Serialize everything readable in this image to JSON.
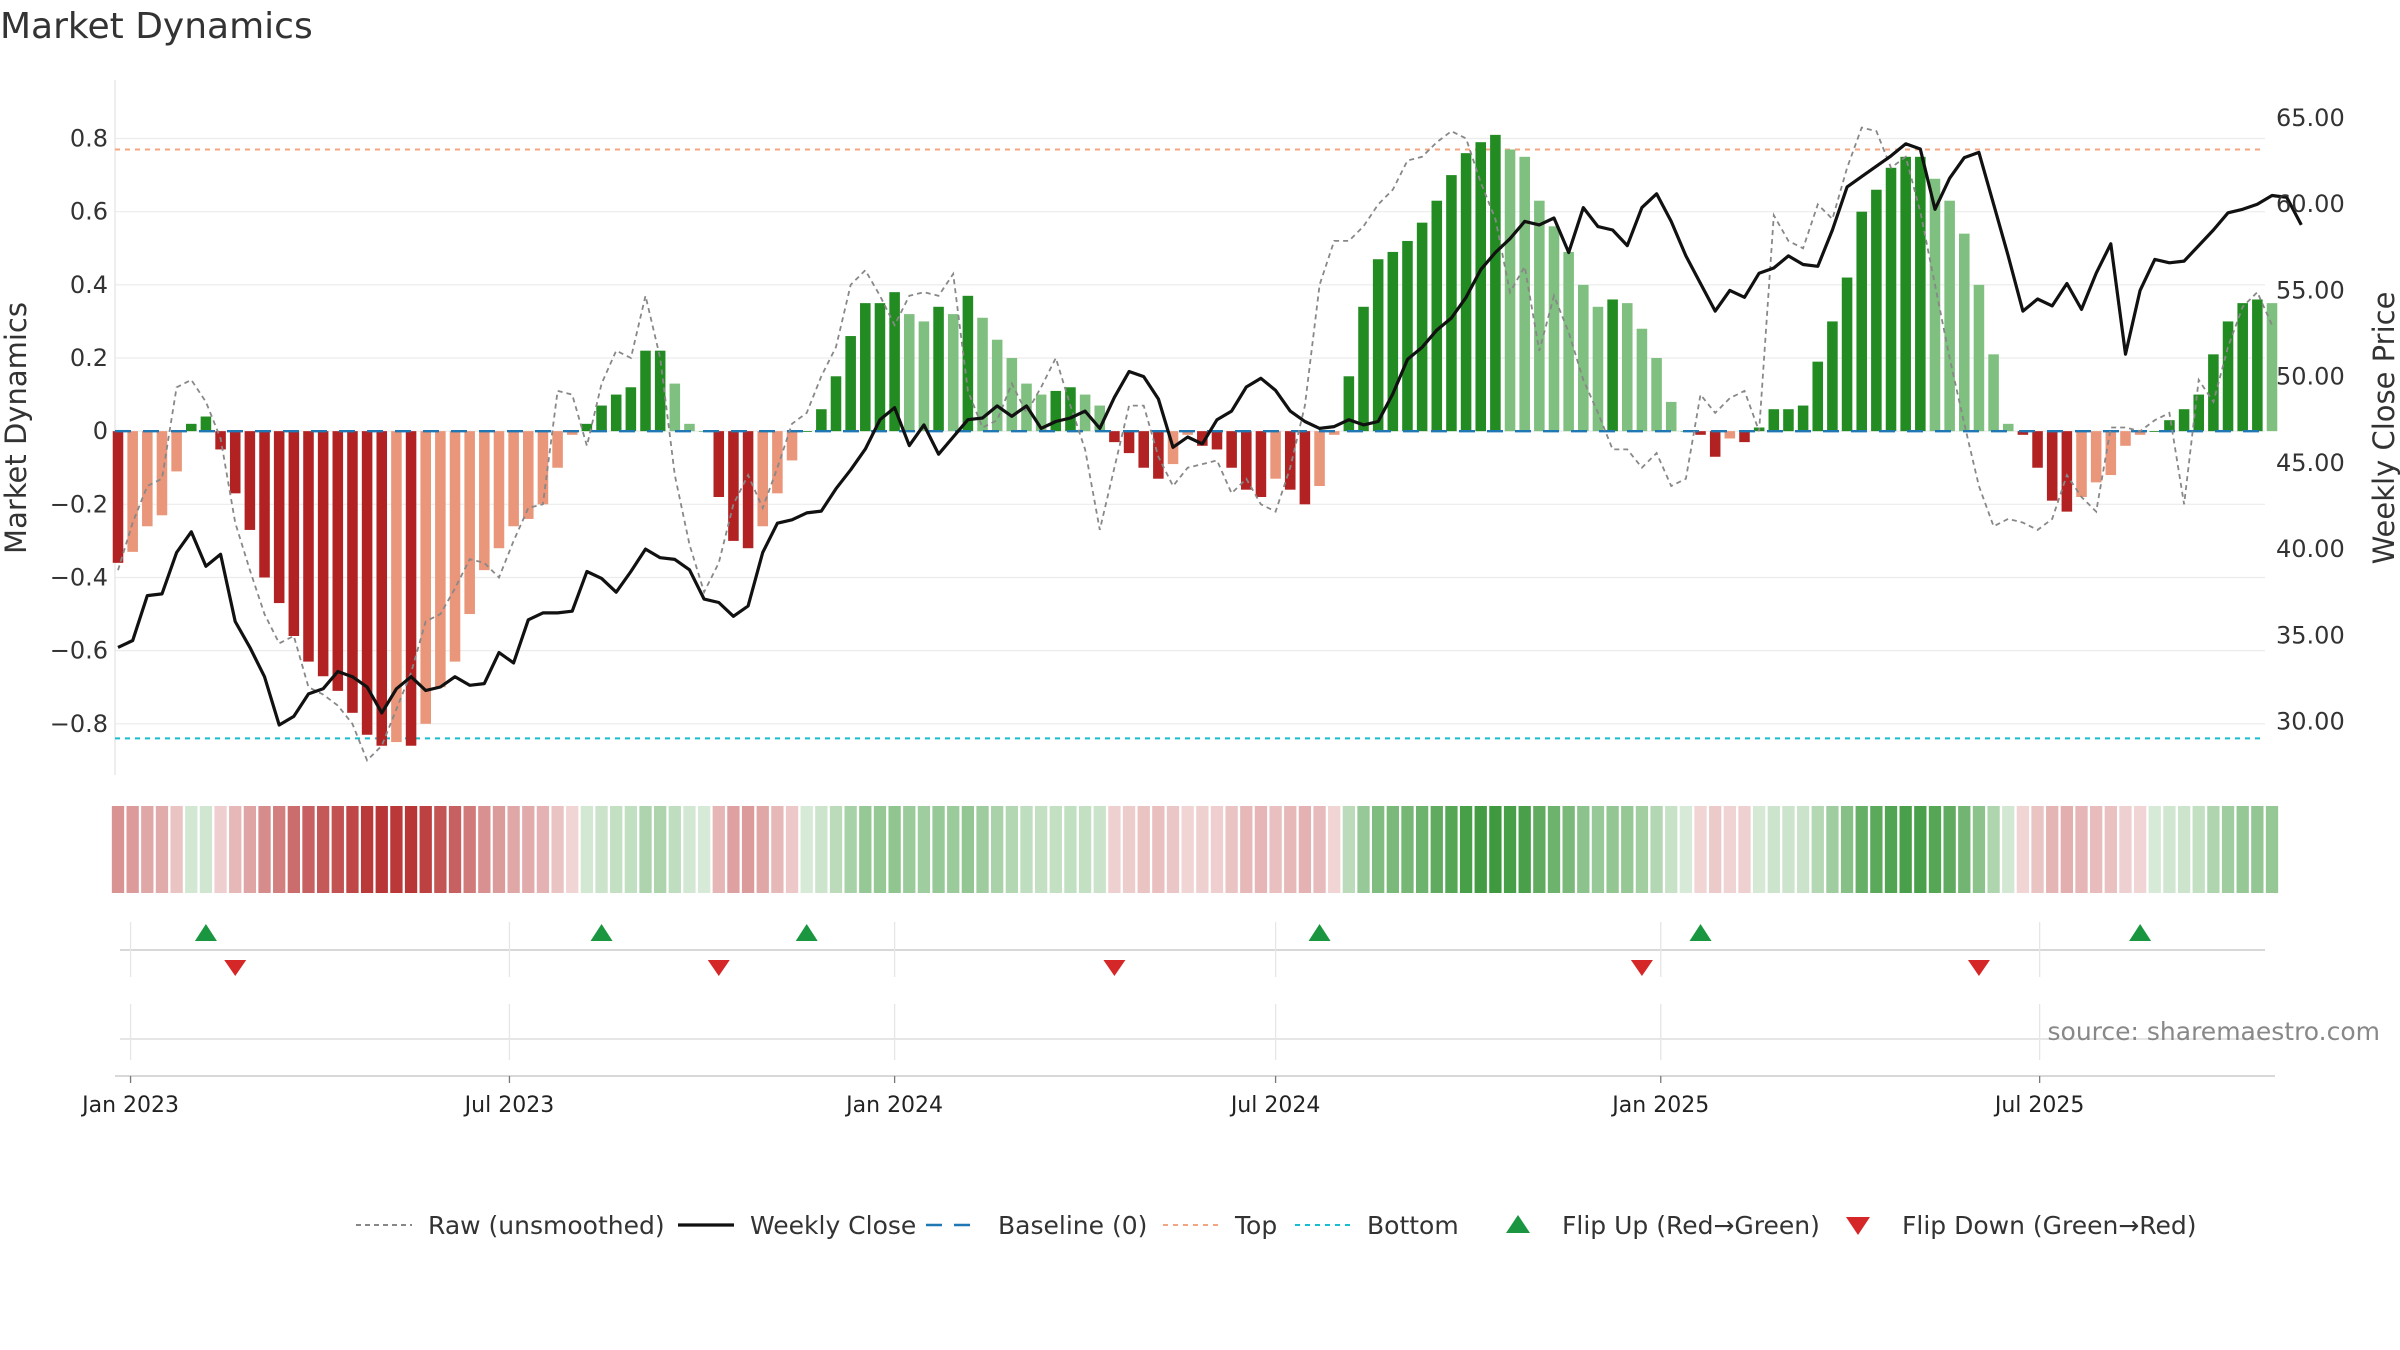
{
  "title": "Market Dynamics",
  "source": "source: sharemaestro.com",
  "colors": {
    "strong_red": "#b22222",
    "light_red": "#e9967a",
    "strong_green": "#228b22",
    "light_green": "#7fbf7f",
    "close_line": "#111111",
    "raw_line": "#888888",
    "baseline": "#1f77b4",
    "top_line": "#f4a582",
    "bottom_line": "#17becf",
    "flip_up": "#1a9641",
    "flip_down": "#d62728"
  },
  "chart_data": {
    "type": "bar",
    "title": "Market Dynamics",
    "ylabel": "Market Dynamics",
    "y2label": "Weekly Close Price",
    "ylim": [
      -0.94,
      0.96
    ],
    "y2lim": [
      26.9,
      67.2
    ],
    "y_ticks": [
      "0.8",
      "0.6",
      "0.4",
      "0.2",
      "0",
      "−0.2",
      "−0.4",
      "−0.6",
      "−0.8"
    ],
    "y2_ticks": [
      "65.00",
      "60.00",
      "55.00",
      "50.00",
      "45.00",
      "40.00",
      "35.00",
      "30.00"
    ],
    "x_ticks": [
      "Jan 2023",
      "Jul 2023",
      "Jan 2024",
      "Jul 2024",
      "Jan 2025",
      "Jul 2025"
    ],
    "start_date": "2022-12-26",
    "week_step_days": 7,
    "top_level": 0.77,
    "bottom_level": -0.84,
    "baseline": 0,
    "grid": true,
    "legend_position": "bottom",
    "legend": [
      "Raw (unsmoothed)",
      "Weekly Close",
      "Baseline (0)",
      "Top",
      "Bottom",
      "Flip Up (Red→Green)",
      "Flip Down (Green→Red)"
    ],
    "smoothed": [
      -0.36,
      -0.33,
      -0.26,
      -0.23,
      -0.11,
      0.02,
      0.04,
      -0.05,
      -0.17,
      -0.27,
      -0.4,
      -0.47,
      -0.56,
      -0.63,
      -0.67,
      -0.71,
      -0.77,
      -0.83,
      -0.86,
      -0.85,
      -0.86,
      -0.8,
      -0.7,
      -0.63,
      -0.5,
      -0.38,
      -0.32,
      -0.26,
      -0.24,
      -0.2,
      -0.1,
      -0.01,
      0.02,
      0.07,
      0.1,
      0.12,
      0.22,
      0.22,
      0.13,
      0.02,
      0.0,
      -0.18,
      -0.3,
      -0.32,
      -0.26,
      -0.17,
      -0.08,
      0.0,
      0.06,
      0.15,
      0.26,
      0.35,
      0.35,
      0.38,
      0.32,
      0.3,
      0.34,
      0.32,
      0.37,
      0.31,
      0.25,
      0.2,
      0.13,
      0.1,
      0.11,
      0.12,
      0.1,
      0.07,
      -0.03,
      -0.06,
      -0.1,
      -0.13,
      -0.09,
      -0.01,
      -0.04,
      -0.05,
      -0.1,
      -0.16,
      -0.18,
      -0.13,
      -0.16,
      -0.2,
      -0.15,
      -0.01,
      0.15,
      0.34,
      0.47,
      0.49,
      0.52,
      0.57,
      0.63,
      0.7,
      0.76,
      0.79,
      0.81,
      0.77,
      0.75,
      0.63,
      0.56,
      0.49,
      0.4,
      0.34,
      0.36,
      0.35,
      0.28,
      0.2,
      0.08,
      0.0,
      -0.01,
      -0.07,
      -0.02,
      -0.03,
      0.01,
      0.06,
      0.06,
      0.07,
      0.19,
      0.3,
      0.42,
      0.6,
      0.66,
      0.72,
      0.75,
      0.75,
      0.69,
      0.63,
      0.54,
      0.4,
      0.21,
      0.02,
      -0.01,
      -0.1,
      -0.19,
      -0.22,
      -0.18,
      -0.14,
      -0.12,
      -0.04,
      -0.01,
      0.0,
      0.03,
      0.06,
      0.1,
      0.21,
      0.3,
      0.35,
      0.36,
      0.35
    ],
    "raw": [
      -0.38,
      -0.25,
      -0.15,
      -0.13,
      0.12,
      0.14,
      0.08,
      -0.02,
      -0.25,
      -0.38,
      -0.5,
      -0.58,
      -0.56,
      -0.7,
      -0.72,
      -0.75,
      -0.8,
      -0.9,
      -0.86,
      -0.76,
      -0.66,
      -0.52,
      -0.5,
      -0.43,
      -0.35,
      -0.36,
      -0.4,
      -0.3,
      -0.21,
      -0.2,
      0.11,
      0.1,
      -0.04,
      0.13,
      0.22,
      0.2,
      0.37,
      0.2,
      -0.12,
      -0.31,
      -0.44,
      -0.36,
      -0.2,
      -0.12,
      -0.21,
      -0.1,
      0.02,
      0.05,
      0.15,
      0.23,
      0.4,
      0.44,
      0.37,
      0.29,
      0.37,
      0.38,
      0.37,
      0.43,
      0.11,
      0.01,
      0.03,
      0.13,
      0.05,
      0.12,
      0.2,
      0.07,
      -0.05,
      -0.27,
      -0.1,
      0.07,
      0.07,
      -0.07,
      -0.15,
      -0.1,
      -0.09,
      -0.08,
      -0.17,
      -0.13,
      -0.2,
      -0.22,
      -0.1,
      0.07,
      0.4,
      0.52,
      0.52,
      0.56,
      0.62,
      0.66,
      0.74,
      0.75,
      0.79,
      0.82,
      0.8,
      0.68,
      0.58,
      0.38,
      0.45,
      0.22,
      0.37,
      0.27,
      0.14,
      0.05,
      -0.05,
      -0.05,
      -0.1,
      -0.06,
      -0.15,
      -0.13,
      0.1,
      0.05,
      0.09,
      0.11,
      0.0,
      0.59,
      0.52,
      0.5,
      0.62,
      0.58,
      0.72,
      0.83,
      0.82,
      0.72,
      0.75,
      0.6,
      0.4,
      0.2,
      0.02,
      -0.15,
      -0.26,
      -0.24,
      -0.25,
      -0.27,
      -0.24,
      -0.12,
      -0.18,
      -0.22,
      0.01,
      0.01,
      0.0,
      0.03,
      0.05,
      -0.2,
      0.14,
      0.08,
      0.23,
      0.34,
      0.38,
      0.29
    ],
    "close": [
      34.3,
      34.7,
      37.3,
      37.4,
      39.8,
      41.0,
      39.0,
      39.7,
      35.8,
      34.3,
      32.6,
      29.8,
      30.3,
      31.6,
      31.9,
      32.9,
      32.6,
      32.0,
      30.5,
      31.9,
      32.6,
      31.8,
      32.0,
      32.6,
      32.1,
      32.2,
      34.0,
      33.4,
      35.9,
      36.3,
      36.3,
      36.4,
      38.7,
      38.3,
      37.5,
      38.7,
      40.0,
      39.5,
      39.4,
      38.8,
      37.1,
      36.9,
      36.1,
      36.7,
      39.8,
      41.5,
      41.7,
      42.1,
      42.2,
      43.5,
      44.6,
      45.8,
      47.5,
      48.2,
      46.0,
      47.2,
      45.5,
      46.5,
      47.5,
      47.6,
      48.3,
      47.7,
      48.3,
      47.0,
      47.4,
      47.6,
      48.0,
      47.0,
      48.8,
      50.3,
      50.0,
      48.7,
      45.9,
      46.5,
      46.1,
      47.5,
      48.0,
      49.4,
      49.9,
      49.2,
      48.0,
      47.4,
      47.0,
      47.1,
      47.5,
      47.2,
      47.4,
      49.0,
      51.0,
      51.7,
      52.7,
      53.4,
      54.6,
      56.2,
      57.2,
      58.0,
      59.0,
      58.8,
      59.2,
      57.2,
      59.8,
      58.7,
      58.5,
      57.6,
      59.8,
      60.6,
      59.0,
      57.0,
      55.4,
      53.8,
      55.0,
      54.6,
      56.0,
      56.3,
      57.0,
      56.5,
      56.4,
      58.5,
      61.0,
      61.6,
      62.2,
      62.8,
      63.5,
      63.2,
      59.7,
      61.5,
      62.7,
      63.0,
      60.0,
      57.0,
      53.8,
      54.5,
      54.1,
      55.4,
      53.9,
      56.0,
      57.7,
      51.3,
      55.0,
      56.8,
      56.6,
      56.7,
      57.6,
      58.5,
      59.5,
      59.7,
      60.0,
      60.5,
      60.4,
      58.8
    ],
    "flips_up": [
      "2023-02-06",
      "2023-08-14",
      "2023-11-20",
      "2024-07-22",
      "2025-01-20",
      "2025-08-18"
    ],
    "flips_down": [
      "2023-02-20",
      "2023-10-09",
      "2024-04-15",
      "2024-12-23",
      "2025-06-02"
    ]
  }
}
